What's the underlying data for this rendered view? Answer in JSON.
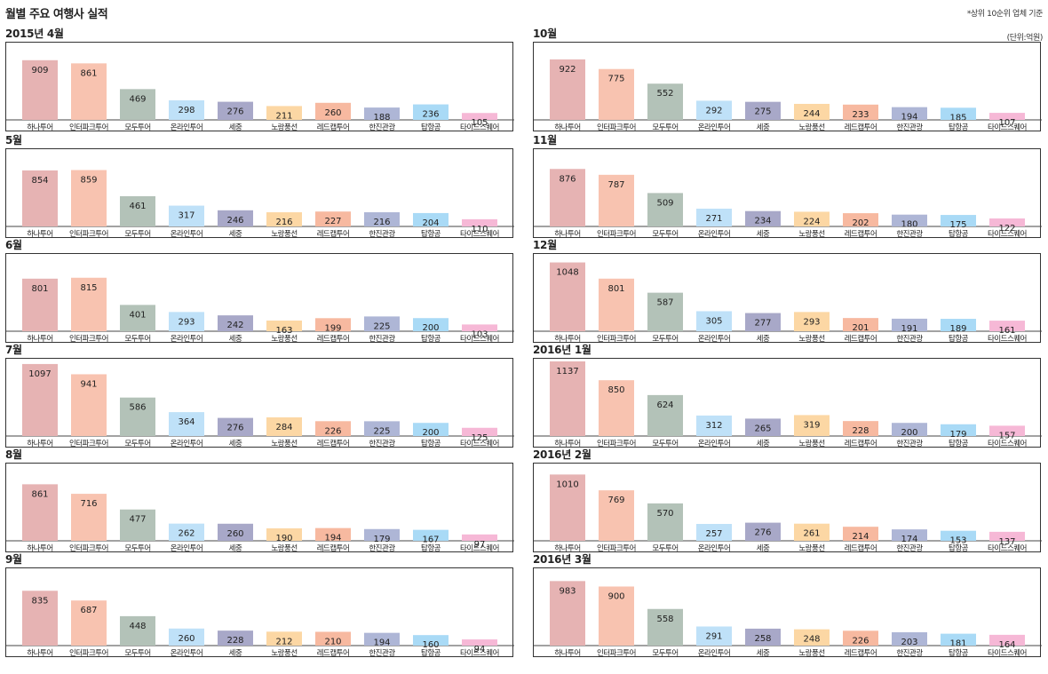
{
  "title": "월별 주요 여행사 실적",
  "note": "*상위 10순위 업체 기준",
  "unit": "(단위:억원)",
  "chart_data": [
    {
      "type": "bar",
      "title": "2015년 4월",
      "categories": [
        "하나투어",
        "인터파크투어",
        "모두투어",
        "온라인투어",
        "세중",
        "노랑풍선",
        "레드캡투어",
        "한진관광",
        "탑항공",
        "타이드스퀘어"
      ],
      "values": [
        909,
        861,
        469,
        298,
        276,
        211,
        260,
        188,
        236,
        105
      ]
    },
    {
      "type": "bar",
      "title": "5월",
      "categories": [
        "하나투어",
        "인터파크투어",
        "모두투어",
        "온라인투어",
        "세중",
        "노랑풍선",
        "레드캡투어",
        "한진관광",
        "탑항공",
        "타이드스퀘어"
      ],
      "values": [
        854,
        859,
        461,
        317,
        246,
        216,
        227,
        216,
        204,
        110
      ]
    },
    {
      "type": "bar",
      "title": "6월",
      "categories": [
        "하나투어",
        "인터파크투어",
        "모두투어",
        "온라인투어",
        "세중",
        "노랑풍선",
        "레드캡투어",
        "한진관광",
        "탑항공",
        "타이드스퀘어"
      ],
      "values": [
        801,
        815,
        401,
        293,
        242,
        163,
        199,
        225,
        200,
        103
      ]
    },
    {
      "type": "bar",
      "title": "7월",
      "categories": [
        "하나투어",
        "인터파크투어",
        "모두투어",
        "온라인투어",
        "세중",
        "노랑풍선",
        "레드캡투어",
        "한진관광",
        "탑항공",
        "타이드스퀘어"
      ],
      "values": [
        1097,
        941,
        586,
        364,
        276,
        284,
        226,
        225,
        200,
        125
      ]
    },
    {
      "type": "bar",
      "title": "8월",
      "categories": [
        "하나투어",
        "인터파크투어",
        "모두투어",
        "온라인투어",
        "세중",
        "노랑풍선",
        "레드캡투어",
        "한진관광",
        "탑항공",
        "타이드스퀘어"
      ],
      "values": [
        861,
        716,
        477,
        262,
        260,
        190,
        194,
        179,
        167,
        97
      ]
    },
    {
      "type": "bar",
      "title": "9월",
      "categories": [
        "하나투어",
        "인터파크투어",
        "모두투어",
        "온라인투어",
        "세중",
        "노랑풍선",
        "레드캡투어",
        "한진관광",
        "탑항공",
        "타이드스퀘어"
      ],
      "values": [
        835,
        687,
        448,
        260,
        228,
        212,
        210,
        194,
        160,
        94
      ]
    },
    {
      "type": "bar",
      "title": "10월",
      "categories": [
        "하나투어",
        "인터파크투어",
        "모두투어",
        "온라인투어",
        "세중",
        "노랑풍선",
        "레드캡투어",
        "한진관광",
        "탑항공",
        "타이드스퀘어"
      ],
      "values": [
        922,
        775,
        552,
        292,
        275,
        244,
        233,
        194,
        185,
        107
      ]
    },
    {
      "type": "bar",
      "title": "11월",
      "categories": [
        "하나투어",
        "인터파크투어",
        "모두투어",
        "온라인투어",
        "세중",
        "노랑풍선",
        "레드캡투어",
        "한진관광",
        "탑항공",
        "타이드스퀘어"
      ],
      "values": [
        876,
        787,
        509,
        271,
        234,
        224,
        202,
        180,
        175,
        122
      ]
    },
    {
      "type": "bar",
      "title": "12월",
      "categories": [
        "하나투어",
        "인터파크투어",
        "모두투어",
        "온라인투어",
        "세중",
        "노랑풍선",
        "레드캡투어",
        "한진관광",
        "탑항공",
        "타이드스퀘어"
      ],
      "values": [
        1048,
        801,
        587,
        305,
        277,
        293,
        201,
        191,
        189,
        161
      ]
    },
    {
      "type": "bar",
      "title": "2016년 1월",
      "categories": [
        "하나투어",
        "인터파크투어",
        "모두투어",
        "온라인투어",
        "세중",
        "노랑풍선",
        "레드캡투어",
        "한진관광",
        "탑항공",
        "타이드스퀘어"
      ],
      "values": [
        1137,
        850,
        624,
        312,
        265,
        319,
        228,
        200,
        179,
        157
      ]
    },
    {
      "type": "bar",
      "title": "2016년 2월",
      "categories": [
        "하나투어",
        "인터파크투어",
        "모두투어",
        "온라인투어",
        "세중",
        "노랑풍선",
        "레드캡투어",
        "한진관광",
        "탑항공",
        "타이드스퀘어"
      ],
      "values": [
        1010,
        769,
        570,
        257,
        276,
        261,
        214,
        174,
        153,
        137
      ]
    },
    {
      "type": "bar",
      "title": "2016년 3월",
      "categories": [
        "하나투어",
        "인터파크투어",
        "모두투어",
        "온라인투어",
        "세중",
        "노랑풍선",
        "레드캡투어",
        "한진관광",
        "탑항공",
        "타이드스퀘어"
      ],
      "values": [
        983,
        900,
        558,
        291,
        258,
        248,
        226,
        203,
        181,
        164
      ]
    }
  ],
  "colors": [
    "#e6b3b3",
    "#f8c3b0",
    "#b3c2b8",
    "#bfe1f8",
    "#a8a8c8",
    "#fcd7a4",
    "#f7b9a0",
    "#aeb6d6",
    "#a9daf6",
    "#f6b8d6"
  ],
  "ylim": [
    0,
    1150
  ],
  "legend": "none",
  "grid": false
}
